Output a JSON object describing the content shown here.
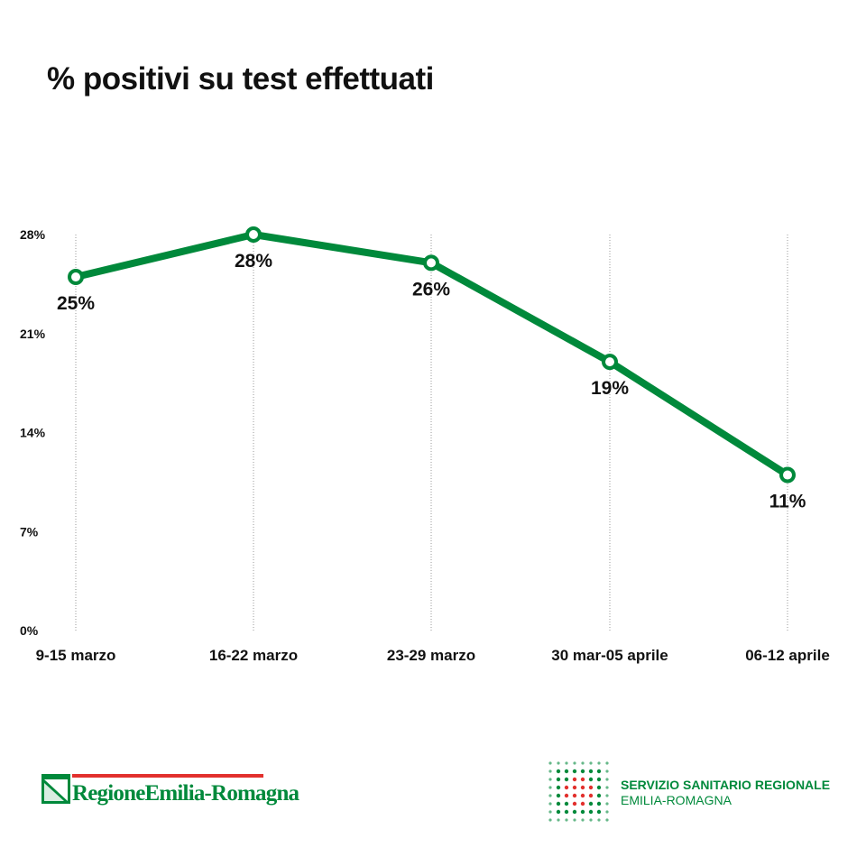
{
  "title": "% positivi su test effettuati",
  "chart_data": {
    "type": "line",
    "title": "% positivi su test effettuati",
    "categories": [
      "9-15 marzo",
      "16-22 marzo",
      "23-29 marzo",
      "30 mar-05 aprile",
      "06-12 aprile"
    ],
    "values": [
      25,
      28,
      26,
      19,
      11
    ],
    "data_labels": [
      "25%",
      "28%",
      "26%",
      "19%",
      "11%"
    ],
    "y_ticks": [
      0,
      7,
      14,
      21,
      28
    ],
    "y_tick_labels": [
      "0%",
      "7%",
      "14%",
      "21%",
      "28%"
    ],
    "ylim": [
      0,
      28
    ],
    "grid": "vertical dotted",
    "xlabel": "",
    "ylabel": "",
    "color": "#00893b"
  },
  "footer": {
    "left_logo": {
      "text": "RegioneEmilia-Romagna",
      "bar_color": "#e2302d",
      "text_color": "#00893b"
    },
    "right_logo": {
      "line1": "SERVIZIO SANITARIO REGIONALE",
      "line2": "EMILIA-ROMAGNA",
      "text_color": "#00893b",
      "accent_color": "#e2302d"
    }
  }
}
